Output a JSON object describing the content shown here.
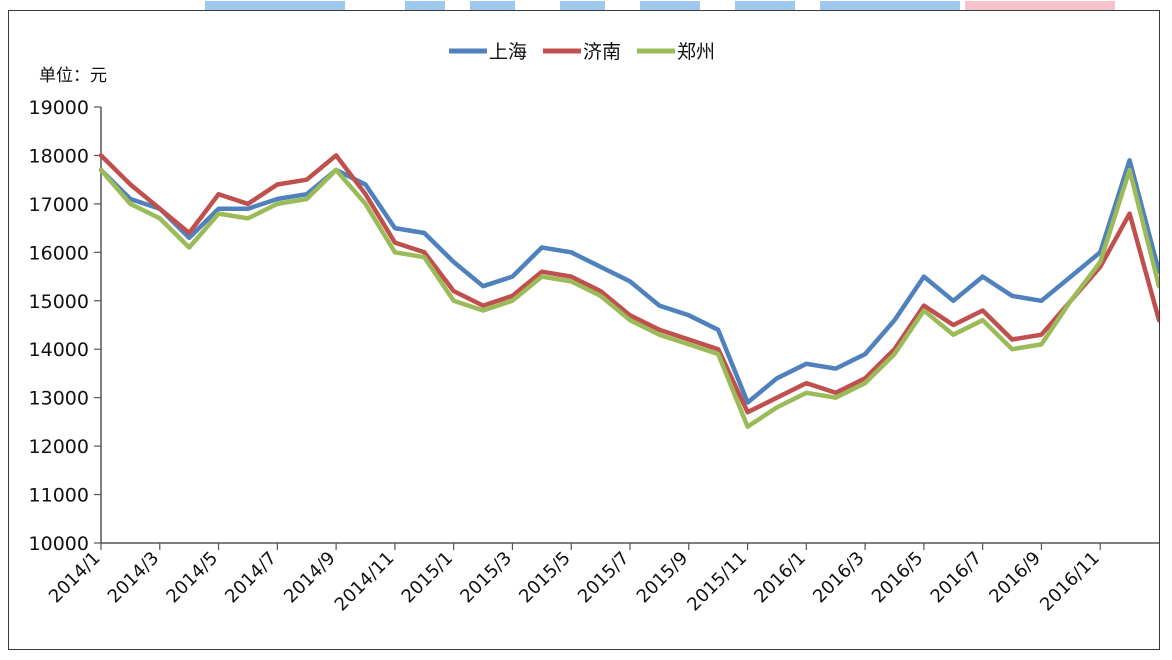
{
  "chart_data": {
    "type": "line",
    "unit_label": "单位：元",
    "ylim": [
      10000,
      19000
    ],
    "yticks": [
      10000,
      11000,
      12000,
      13000,
      14000,
      15000,
      16000,
      17000,
      18000,
      19000
    ],
    "xticks": [
      "2014/1",
      "2014/3",
      "2014/5",
      "2014/7",
      "2014/9",
      "2014/11",
      "2015/1",
      "2015/3",
      "2015/5",
      "2015/7",
      "2015/9",
      "2015/11",
      "2016/1",
      "2016/3",
      "2016/5",
      "2016/7",
      "2016/9",
      "2016/11"
    ],
    "x": [
      "2014/1",
      "2014/2",
      "2014/3",
      "2014/4",
      "2014/5",
      "2014/6",
      "2014/7",
      "2014/8",
      "2014/9",
      "2014/10",
      "2014/11",
      "2014/12",
      "2015/1",
      "2015/2",
      "2015/3",
      "2015/4",
      "2015/5",
      "2015/6",
      "2015/7",
      "2015/8",
      "2015/9",
      "2015/10",
      "2015/11",
      "2015/12",
      "2016/1",
      "2016/2",
      "2016/3",
      "2016/4",
      "2016/5",
      "2016/6",
      "2016/7",
      "2016/8",
      "2016/9",
      "2016/10",
      "2016/11",
      "2016/12",
      "2017/1"
    ],
    "legend_position": "top",
    "grid": false,
    "series": [
      {
        "name": "上海",
        "color": "#4F81BD",
        "values": [
          17700,
          17100,
          16900,
          16300,
          16900,
          16900,
          17100,
          17200,
          17700,
          17400,
          16500,
          16400,
          15800,
          15300,
          15500,
          16100,
          16000,
          15700,
          15400,
          14900,
          14700,
          14400,
          12900,
          13400,
          13700,
          13600,
          13900,
          14600,
          15500,
          15000,
          15500,
          15100,
          15000,
          15500,
          16000,
          17900,
          15600
        ]
      },
      {
        "name": "济南",
        "color": "#C0504D",
        "values": [
          18000,
          17400,
          16900,
          16400,
          17200,
          17000,
          17400,
          17500,
          18000,
          17200,
          16200,
          16000,
          15200,
          14900,
          15100,
          15600,
          15500,
          15200,
          14700,
          14400,
          14200,
          14000,
          12700,
          13000,
          13300,
          13100,
          13400,
          14000,
          14900,
          14500,
          14800,
          14200,
          14300,
          15000,
          15700,
          16800,
          14600
        ]
      },
      {
        "name": "郑州",
        "color": "#9BBB59",
        "values": [
          17700,
          17000,
          16700,
          16100,
          16800,
          16700,
          17000,
          17100,
          17700,
          17000,
          16000,
          15900,
          15000,
          14800,
          15000,
          15500,
          15400,
          15100,
          14600,
          14300,
          14100,
          13900,
          12400,
          12800,
          13100,
          13000,
          13300,
          13900,
          14800,
          14300,
          14600,
          14000,
          14100,
          15000,
          15800,
          17700,
          15300
        ]
      }
    ]
  }
}
